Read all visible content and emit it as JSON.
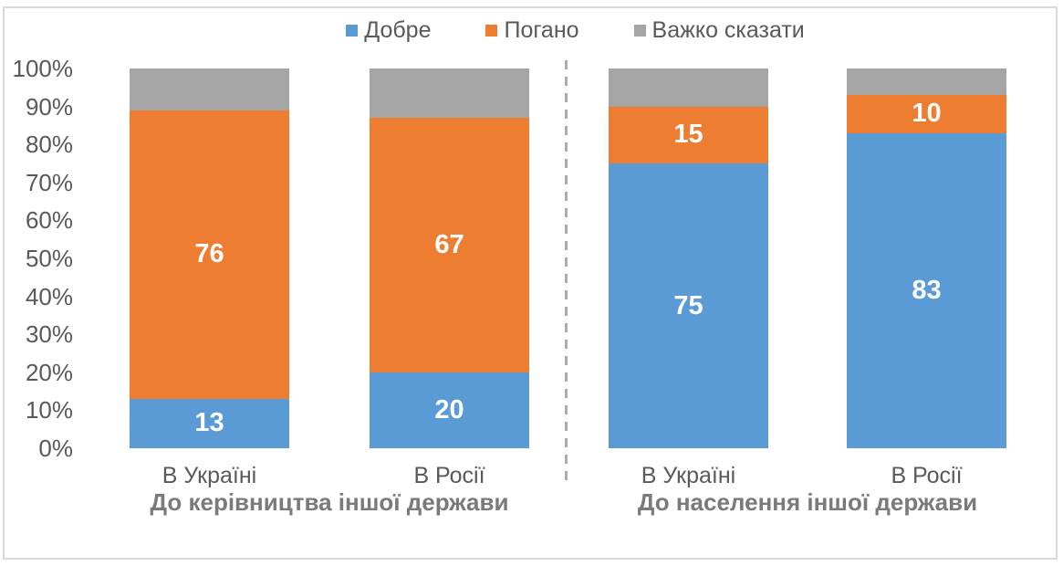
{
  "figure": {
    "background": "#FFFFFF",
    "border_color": "#D9D9D9"
  },
  "chart_data": {
    "type": "bar",
    "stacking": "percent",
    "title": "",
    "legend_position": "top",
    "grid": false,
    "series": [
      {
        "key": "dobre",
        "name": "Добре",
        "color": "#5B9BD5",
        "labeled": true
      },
      {
        "key": "pohano",
        "name": "Погано",
        "color": "#ED7D31",
        "labeled": true
      },
      {
        "key": "vazhko-skazaty",
        "name": "Важко сказати",
        "color": "#A5A5A5",
        "labeled": false
      }
    ],
    "y_axis": {
      "min": 0,
      "max": 100,
      "tick_step": 10,
      "ticks": [
        {
          "value": 0,
          "label": "0%"
        },
        {
          "value": 10,
          "label": "10%"
        },
        {
          "value": 20,
          "label": "20%"
        },
        {
          "value": 30,
          "label": "30%"
        },
        {
          "value": 40,
          "label": "40%"
        },
        {
          "value": 50,
          "label": "50%"
        },
        {
          "value": 60,
          "label": "60%"
        },
        {
          "value": 70,
          "label": "70%"
        },
        {
          "value": 80,
          "label": "80%"
        },
        {
          "value": 90,
          "label": "90%"
        },
        {
          "value": 100,
          "label": "100%"
        }
      ]
    },
    "groups": [
      {
        "title": "До керівництва іншої держави",
        "bars": [
          {
            "category": "В Україні",
            "values": [
              13,
              76,
              11
            ]
          },
          {
            "category": "В Росії",
            "values": [
              20,
              67,
              13
            ]
          }
        ]
      },
      {
        "title": "До населення іншої держави",
        "bars": [
          {
            "category": "В Україні",
            "values": [
              75,
              15,
              10
            ]
          },
          {
            "category": "В Росії",
            "values": [
              83,
              10,
              7
            ]
          }
        ]
      }
    ],
    "divider": {
      "style": "dashed",
      "color": "#ABABAB"
    },
    "text_colors": {
      "axis": "#595959",
      "legend": "#595959",
      "category": "#595959",
      "group_title": "#7A7A7A",
      "value_label": "#FFFFFF"
    }
  }
}
